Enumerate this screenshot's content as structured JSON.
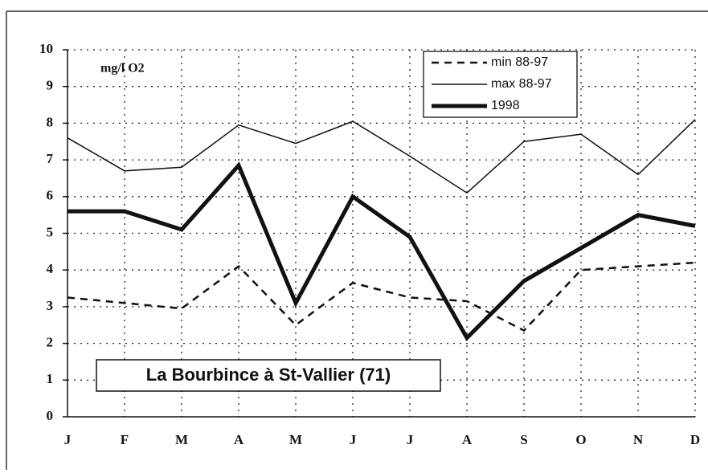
{
  "chart_data": {
    "type": "line",
    "annotations": [
      "mg/l O2",
      "La Bourbince à St-Vallier (71)"
    ],
    "categories": [
      "J",
      "F",
      "M",
      "A",
      "M",
      "J",
      "J",
      "A",
      "S",
      "O",
      "N",
      "D"
    ],
    "series": [
      {
        "name": "min 88-97",
        "color": "#111111",
        "style": "dashed",
        "values": [
          3.25,
          3.1,
          2.95,
          4.1,
          2.5,
          3.65,
          3.25,
          3.15,
          2.35,
          4.0,
          4.1,
          4.2
        ]
      },
      {
        "name": "max 88-97",
        "color": "#111111",
        "style": "thin",
        "values": [
          7.6,
          6.7,
          6.8,
          7.95,
          7.45,
          8.05,
          7.1,
          6.1,
          7.5,
          7.7,
          6.6,
          8.1
        ]
      },
      {
        "name": "1998",
        "color": "#111111",
        "style": "thick",
        "values": [
          5.6,
          5.6,
          5.1,
          6.85,
          3.1,
          6.0,
          4.9,
          2.15,
          3.7,
          4.6,
          5.5,
          5.2
        ]
      }
    ],
    "ylim": [
      0,
      10
    ],
    "yticks": [
      0,
      1,
      2,
      3,
      4,
      5,
      6,
      7,
      8,
      9,
      10
    ],
    "grid": true
  }
}
